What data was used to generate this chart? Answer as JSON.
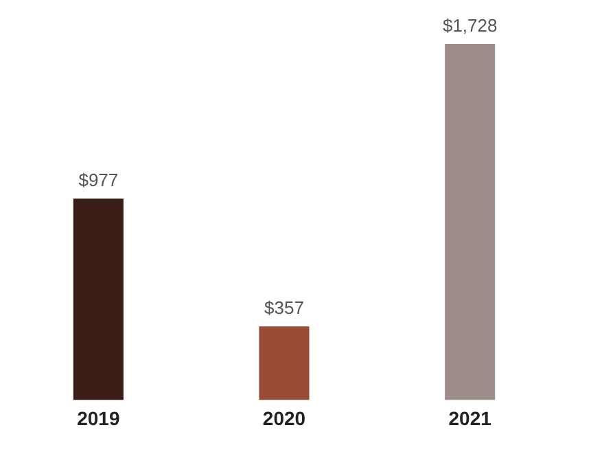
{
  "chart_data": {
    "type": "bar",
    "categories": [
      "2019",
      "2020",
      "2021"
    ],
    "values": [
      977,
      357,
      1728
    ],
    "colors": [
      "#3a1d16",
      "#9a4c36",
      "#9e8e89"
    ],
    "value_labels": [
      "$977",
      "$357",
      "$1,728"
    ],
    "grid": false,
    "legend": false
  }
}
